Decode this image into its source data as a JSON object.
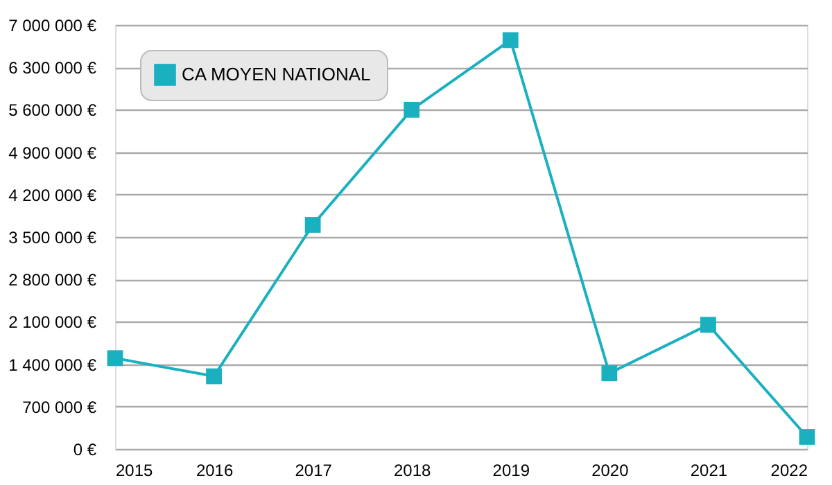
{
  "chart_data": {
    "type": "line",
    "x": [
      2015,
      2016,
      2017,
      2018,
      2019,
      2020,
      2021,
      2022
    ],
    "series": [
      {
        "name": "CA MOYEN NATIONAL",
        "color": "#1ab0c0",
        "values": [
          1500000,
          1200000,
          3700000,
          5600000,
          6750000,
          1250000,
          2050000,
          200000
        ]
      }
    ],
    "xlim": [
      2015,
      2022
    ],
    "xticks": [
      2015,
      2016,
      2017,
      2018,
      2019,
      2020,
      2021,
      2022
    ],
    "ylim": [
      0,
      7000000
    ],
    "yticks": [
      {
        "value": 0,
        "label": "0 €"
      },
      {
        "value": 700000,
        "label": "700 000 €"
      },
      {
        "value": 1400000,
        "label": "1 400 000 €"
      },
      {
        "value": 2100000,
        "label": "2 100 000 €"
      },
      {
        "value": 2800000,
        "label": "2 800 000 €"
      },
      {
        "value": 3500000,
        "label": "3 500 000 €"
      },
      {
        "value": 4200000,
        "label": "4 200 000 €"
      },
      {
        "value": 4900000,
        "label": "4 900 000 €"
      },
      {
        "value": 5600000,
        "label": "5 600 000 €"
      },
      {
        "value": 6300000,
        "label": "6 300 000 €"
      },
      {
        "value": 7000000,
        "label": "7 000 000 €"
      }
    ],
    "grid": "y",
    "legend": "top left",
    "marker": "square",
    "line_style": "solid"
  }
}
